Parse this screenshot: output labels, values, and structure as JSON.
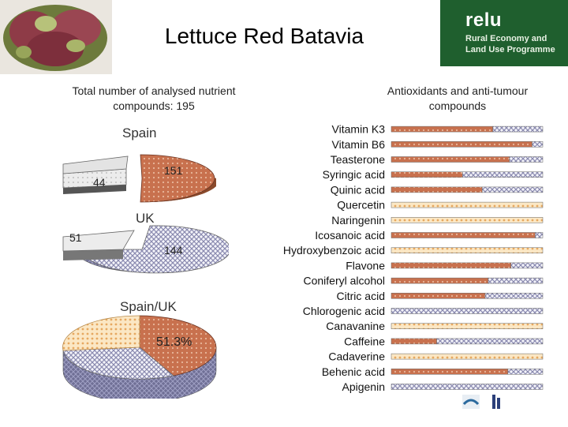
{
  "header": {
    "title": "Lettuce Red Batavia",
    "photo_description_icon": "lettuce-photo",
    "logo": {
      "name": "relu",
      "subtitle": "Rural Economy and\nLand Use Programme",
      "color": "#1f5f2e"
    }
  },
  "left_panel": {
    "subtitle": "Total number of analysed nutrient compounds: 195"
  },
  "right_panel": {
    "subtitle": "Antioxidants and anti-tumour compounds"
  },
  "colors": {
    "spain": "#c8714e",
    "uk": "#9a9ab8",
    "spain_uk": "#c8714e",
    "other": "#f2c98c",
    "neutral": "#e8e8e8",
    "border_dark": "#555555"
  },
  "chart_data": [
    {
      "type": "pie",
      "title": "Spain",
      "slices": [
        {
          "label": "151",
          "value": 151
        },
        {
          "label": "44",
          "value": 44
        }
      ]
    },
    {
      "type": "pie",
      "title": "UK",
      "slices": [
        {
          "label": "144",
          "value": 144
        },
        {
          "label": "51",
          "value": 51
        }
      ]
    },
    {
      "type": "pie",
      "title": "Spain/UK",
      "slices": [
        {
          "label": "51.3%",
          "value": 51.3
        },
        {
          "label": "",
          "value": 26
        },
        {
          "label": "",
          "value": 22.7
        }
      ]
    },
    {
      "type": "bar",
      "orientation": "horizontal",
      "stacked": true,
      "categories": [
        "Vitamin K3",
        "Vitamin B6",
        "Teasterone",
        "Syringic acid",
        "Quinic acid",
        "Quercetin",
        "Naringenin",
        "Icosanoic acid",
        "Hydroxybenzoic acid",
        "Flavone",
        "Coniferyl alcohol",
        "Citric acid",
        "Chlorogenic acid",
        "Canavanine",
        "Caffeine",
        "Cadaverine",
        "Behenic acid",
        "Apigenin"
      ],
      "series": [
        {
          "values": [
            67,
            93,
            78,
            47,
            60,
            0,
            0,
            95,
            0,
            79,
            64,
            62,
            0,
            0,
            30,
            0,
            77,
            0
          ]
        },
        {
          "values": [
            33,
            7,
            22,
            53,
            40,
            0,
            0,
            5,
            0,
            21,
            36,
            38,
            100,
            0,
            70,
            0,
            23,
            100
          ]
        },
        {
          "values": [
            0,
            0,
            0,
            0,
            0,
            100,
            100,
            0,
            100,
            0,
            0,
            0,
            0,
            100,
            0,
            100,
            0,
            0
          ]
        }
      ],
      "xlim": [
        0,
        100
      ]
    }
  ]
}
